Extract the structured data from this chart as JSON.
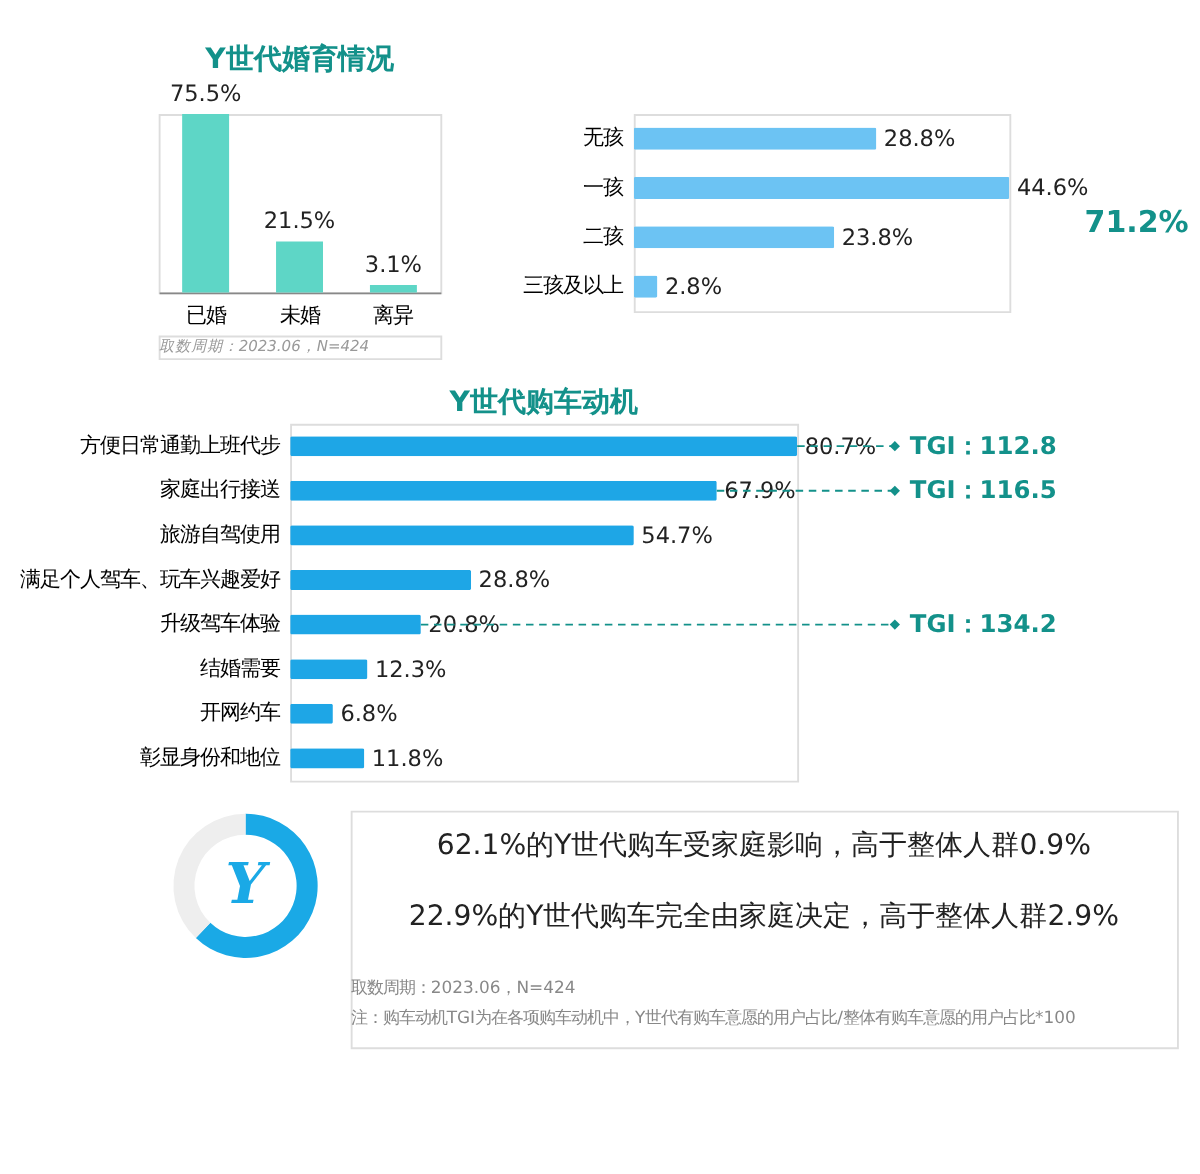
{
  "chart_data": [
    {
      "type": "bar",
      "title": "Y世代婚育情况",
      "categories": [
        "已婚",
        "未婚",
        "离异"
      ],
      "values": [
        75.5,
        21.5,
        3.1
      ],
      "value_labels": [
        "75.5%",
        "21.5%",
        "3.1%"
      ],
      "color": "#5ed6c6",
      "annotations": [
        "取数周期：2023.06，N=424"
      ]
    },
    {
      "type": "bar",
      "orientation": "horizontal",
      "categories": [
        "无孩",
        "一孩",
        "二孩",
        "三孩及以上"
      ],
      "values": [
        28.8,
        44.6,
        23.8,
        2.8
      ],
      "value_labels": [
        "28.8%",
        "44.6%",
        "23.8%",
        "2.8%"
      ],
      "color": "#6cc3f3",
      "annotations": [
        "71.2%"
      ]
    },
    {
      "type": "bar",
      "orientation": "horizontal",
      "title": "Y世代购车动机",
      "categories": [
        "方便日常通勤上班代步",
        "家庭出行接送",
        "旅游自驾使用",
        "满足个人驾车、玩车兴趣爱好",
        "升级驾车体验",
        "结婚需要",
        "开网约车",
        "彰显身份和地位"
      ],
      "values": [
        80.7,
        67.9,
        54.7,
        28.8,
        20.8,
        12.3,
        6.8,
        11.8
      ],
      "value_labels": [
        "80.7%",
        "67.9%",
        "54.7%",
        "28.8%",
        "20.8%",
        "12.3%",
        "6.8%",
        "11.8%"
      ],
      "color": "#1ea6e6",
      "annotations": [
        {
          "text": "TGI：112.8",
          "x": 80.7,
          "y": "方便日常通勤上班代步"
        },
        {
          "text": "TGI：116.5",
          "x": 67.9,
          "y": "家庭出行接送"
        },
        {
          "text": "TGI：134.2",
          "x": 20.8,
          "y": "升级驾车体验"
        }
      ]
    },
    {
      "type": "donut",
      "categories": [
        null,
        null
      ],
      "values": [
        62.1,
        37.9
      ],
      "colors": [
        "#1aa9e6",
        "#eeeeee"
      ],
      "annotations": [
        "Y"
      ]
    },
    {
      "type": "other",
      "annotations": [
        "62.1%的Y世代购车受家庭影响，高于整体人群0.9%",
        "22.9%的Y世代购车完全由家庭决定，高于整体人群2.9%",
        "取数周期：2023.06，N=424",
        "注：购车动机TGI为在各项购车动机中，Y世代有购车意愿的用户占比/整体有购车意愿的用户占比*100"
      ]
    }
  ]
}
